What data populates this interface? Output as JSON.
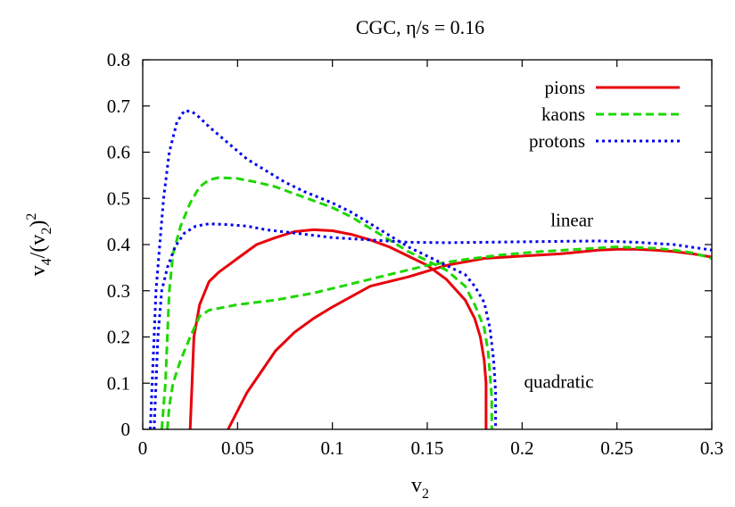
{
  "chart_data": {
    "type": "line",
    "title": "CGC, η/s = 0.16",
    "xlabel": {
      "base": "v",
      "sub": "2"
    },
    "ylabel": {
      "v": "v",
      "sub4": "4",
      "paren": "/(v",
      "sub2": "2",
      "close": ")",
      "sup": "2"
    },
    "xlim": [
      0,
      0.3
    ],
    "ylim": [
      0,
      0.8
    ],
    "xticks": [
      {
        "value": 0,
        "label": "0"
      },
      {
        "value": 0.05,
        "label": "0.05"
      },
      {
        "value": 0.1,
        "label": "0.1"
      },
      {
        "value": 0.15,
        "label": "0.15"
      },
      {
        "value": 0.2,
        "label": "0.2"
      },
      {
        "value": 0.25,
        "label": "0.25"
      },
      {
        "value": 0.3,
        "label": "0.3"
      }
    ],
    "yticks": [
      {
        "value": 0,
        "label": "0"
      },
      {
        "value": 0.1,
        "label": "0.1"
      },
      {
        "value": 0.2,
        "label": "0.2"
      },
      {
        "value": 0.3,
        "label": "0.3"
      },
      {
        "value": 0.4,
        "label": "0.4"
      },
      {
        "value": 0.5,
        "label": "0.5"
      },
      {
        "value": 0.6,
        "label": "0.6"
      },
      {
        "value": 0.7,
        "label": "0.7"
      },
      {
        "value": 0.8,
        "label": "0.8"
      }
    ],
    "grid": false,
    "legend_position": "top-right",
    "annotations": [
      {
        "text": "linear",
        "x": 0.215,
        "y": 0.44
      },
      {
        "text": "quadratic",
        "x": 0.201,
        "y": 0.09
      }
    ],
    "series": [
      {
        "name": "pions",
        "color": "#e8000b",
        "dash": "solid",
        "curves": [
          {
            "id": "linear",
            "points": [
              [
                0.025,
                0
              ],
              [
                0.026,
                0.1
              ],
              [
                0.027,
                0.2
              ],
              [
                0.03,
                0.27
              ],
              [
                0.035,
                0.32
              ],
              [
                0.04,
                0.34
              ],
              [
                0.05,
                0.37
              ],
              [
                0.06,
                0.4
              ],
              [
                0.07,
                0.415
              ],
              [
                0.08,
                0.428
              ],
              [
                0.09,
                0.432
              ],
              [
                0.1,
                0.43
              ],
              [
                0.11,
                0.422
              ],
              [
                0.12,
                0.41
              ],
              [
                0.13,
                0.395
              ],
              [
                0.14,
                0.375
              ],
              [
                0.15,
                0.355
              ],
              [
                0.16,
                0.325
              ],
              [
                0.17,
                0.28
              ],
              [
                0.175,
                0.24
              ],
              [
                0.178,
                0.2
              ],
              [
                0.18,
                0.15
              ],
              [
                0.181,
                0.1
              ],
              [
                0.181,
                0.05
              ],
              [
                0.181,
                0
              ]
            ]
          },
          {
            "id": "quadratic",
            "points": [
              [
                0.045,
                0
              ],
              [
                0.05,
                0.04
              ],
              [
                0.055,
                0.08
              ],
              [
                0.06,
                0.11
              ],
              [
                0.065,
                0.14
              ],
              [
                0.07,
                0.17
              ],
              [
                0.075,
                0.19
              ],
              [
                0.08,
                0.21
              ],
              [
                0.09,
                0.24
              ],
              [
                0.1,
                0.265
              ],
              [
                0.12,
                0.31
              ],
              [
                0.14,
                0.33
              ],
              [
                0.16,
                0.355
              ],
              [
                0.18,
                0.37
              ],
              [
                0.2,
                0.375
              ],
              [
                0.22,
                0.38
              ],
              [
                0.24,
                0.388
              ],
              [
                0.25,
                0.39
              ],
              [
                0.26,
                0.39
              ],
              [
                0.27,
                0.388
              ],
              [
                0.28,
                0.385
              ],
              [
                0.29,
                0.38
              ],
              [
                0.3,
                0.373
              ]
            ]
          }
        ]
      },
      {
        "name": "kaons",
        "color": "#1ed700",
        "dash": "dashed",
        "curves": [
          {
            "id": "linear",
            "points": [
              [
                0.01,
                0
              ],
              [
                0.011,
                0.05
              ],
              [
                0.012,
                0.1
              ],
              [
                0.013,
                0.2
              ],
              [
                0.014,
                0.3
              ],
              [
                0.016,
                0.38
              ],
              [
                0.02,
                0.44
              ],
              [
                0.025,
                0.49
              ],
              [
                0.03,
                0.525
              ],
              [
                0.035,
                0.54
              ],
              [
                0.04,
                0.545
              ],
              [
                0.05,
                0.543
              ],
              [
                0.06,
                0.535
              ],
              [
                0.07,
                0.525
              ],
              [
                0.08,
                0.51
              ],
              [
                0.09,
                0.495
              ],
              [
                0.1,
                0.48
              ],
              [
                0.11,
                0.46
              ],
              [
                0.12,
                0.435
              ],
              [
                0.13,
                0.41
              ],
              [
                0.14,
                0.385
              ],
              [
                0.15,
                0.365
              ],
              [
                0.16,
                0.345
              ],
              [
                0.17,
                0.31
              ],
              [
                0.175,
                0.27
              ],
              [
                0.18,
                0.22
              ],
              [
                0.182,
                0.17
              ],
              [
                0.183,
                0.12
              ],
              [
                0.184,
                0.07
              ],
              [
                0.184,
                0
              ]
            ]
          },
          {
            "id": "quadratic",
            "points": [
              [
                0.013,
                0
              ],
              [
                0.014,
                0.05
              ],
              [
                0.016,
                0.1
              ],
              [
                0.02,
                0.15
              ],
              [
                0.025,
                0.2
              ],
              [
                0.03,
                0.245
              ],
              [
                0.035,
                0.258
              ],
              [
                0.05,
                0.27
              ],
              [
                0.07,
                0.28
              ],
              [
                0.09,
                0.295
              ],
              [
                0.11,
                0.315
              ],
              [
                0.13,
                0.335
              ],
              [
                0.15,
                0.355
              ],
              [
                0.17,
                0.368
              ],
              [
                0.19,
                0.378
              ],
              [
                0.21,
                0.385
              ],
              [
                0.23,
                0.39
              ],
              [
                0.25,
                0.395
              ],
              [
                0.27,
                0.392
              ],
              [
                0.28,
                0.388
              ],
              [
                0.29,
                0.382
              ],
              [
                0.3,
                0.37
              ]
            ]
          }
        ]
      },
      {
        "name": "protons",
        "color": "#0000ee",
        "dash": "dotted",
        "curves": [
          {
            "id": "linear",
            "points": [
              [
                0.004,
                0
              ],
              [
                0.005,
                0.1
              ],
              [
                0.006,
                0.2
              ],
              [
                0.007,
                0.3
              ],
              [
                0.009,
                0.4
              ],
              [
                0.011,
                0.5
              ],
              [
                0.014,
                0.6
              ],
              [
                0.018,
                0.665
              ],
              [
                0.022,
                0.69
              ],
              [
                0.026,
                0.688
              ],
              [
                0.03,
                0.675
              ],
              [
                0.035,
                0.655
              ],
              [
                0.045,
                0.62
              ],
              [
                0.055,
                0.585
              ],
              [
                0.065,
                0.56
              ],
              [
                0.075,
                0.535
              ],
              [
                0.085,
                0.515
              ],
              [
                0.1,
                0.49
              ],
              [
                0.11,
                0.47
              ],
              [
                0.12,
                0.445
              ],
              [
                0.13,
                0.42
              ],
              [
                0.14,
                0.395
              ],
              [
                0.15,
                0.375
              ],
              [
                0.16,
                0.355
              ],
              [
                0.17,
                0.335
              ],
              [
                0.175,
                0.31
              ],
              [
                0.18,
                0.275
              ],
              [
                0.183,
                0.22
              ],
              [
                0.185,
                0.15
              ],
              [
                0.186,
                0.08
              ],
              [
                0.186,
                0
              ]
            ]
          },
          {
            "id": "quadratic",
            "points": [
              [
                0.006,
                0
              ],
              [
                0.007,
                0.1
              ],
              [
                0.008,
                0.2
              ],
              [
                0.01,
                0.3
              ],
              [
                0.013,
                0.35
              ],
              [
                0.017,
                0.395
              ],
              [
                0.022,
                0.425
              ],
              [
                0.028,
                0.44
              ],
              [
                0.035,
                0.445
              ],
              [
                0.045,
                0.443
              ],
              [
                0.055,
                0.44
              ],
              [
                0.065,
                0.432
              ],
              [
                0.08,
                0.425
              ],
              [
                0.1,
                0.415
              ],
              [
                0.12,
                0.41
              ],
              [
                0.14,
                0.405
              ],
              [
                0.16,
                0.404
              ],
              [
                0.18,
                0.405
              ],
              [
                0.2,
                0.406
              ],
              [
                0.22,
                0.407
              ],
              [
                0.24,
                0.408
              ],
              [
                0.26,
                0.405
              ],
              [
                0.28,
                0.4
              ],
              [
                0.3,
                0.388
              ]
            ]
          }
        ]
      }
    ]
  }
}
